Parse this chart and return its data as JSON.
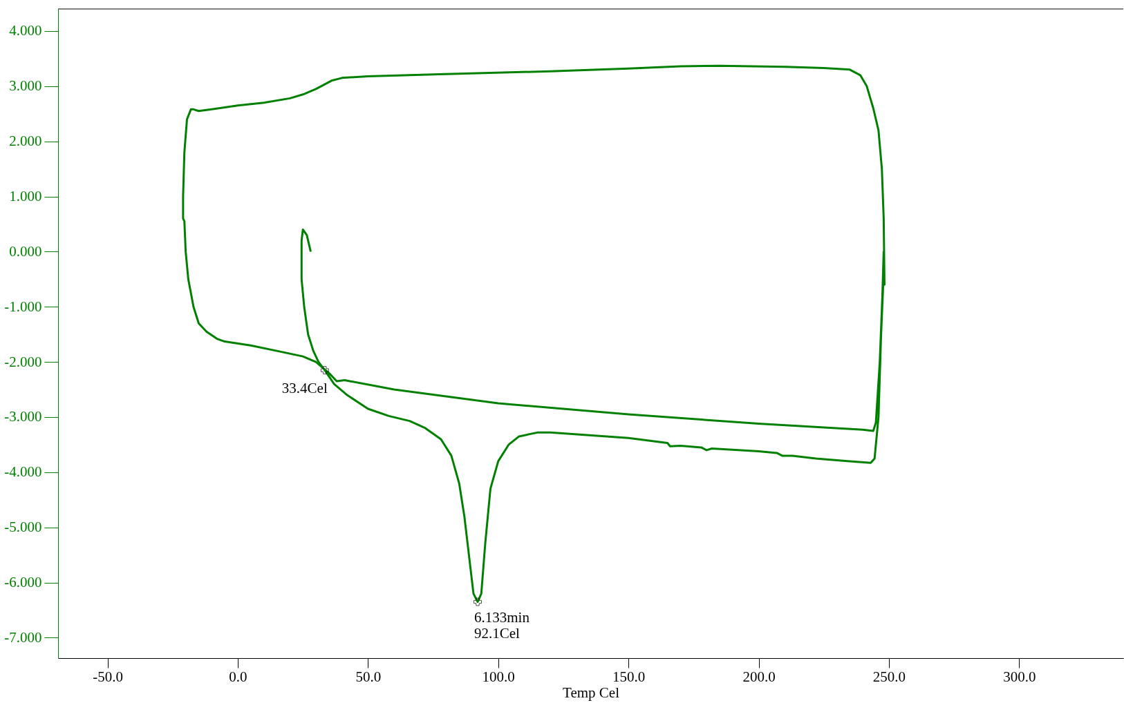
{
  "chart_data": {
    "type": "line",
    "xlabel": "Temp Cel",
    "xlim": [
      -69,
      340
    ],
    "ylim": [
      -7.37,
      4.4
    ],
    "xticks": [
      {
        "value": -50,
        "label": "-50.0"
      },
      {
        "value": 0,
        "label": "0.0"
      },
      {
        "value": 50,
        "label": "50.0"
      },
      {
        "value": 100,
        "label": "100.0"
      },
      {
        "value": 150,
        "label": "150.0"
      },
      {
        "value": 200,
        "label": "200.0"
      },
      {
        "value": 250,
        "label": "250.0"
      },
      {
        "value": 300,
        "label": "300.0"
      }
    ],
    "yticks": [
      {
        "value": 4,
        "label": "4.000"
      },
      {
        "value": 3,
        "label": "3.000"
      },
      {
        "value": 2,
        "label": "2.000"
      },
      {
        "value": 1,
        "label": "1.000"
      },
      {
        "value": 0,
        "label": "0.000"
      },
      {
        "value": -1,
        "label": "-1.000"
      },
      {
        "value": -2,
        "label": "-2.000"
      },
      {
        "value": -3,
        "label": "-3.000"
      },
      {
        "value": -4,
        "label": "-4.000"
      },
      {
        "value": -5,
        "label": "-5.000"
      },
      {
        "value": -6,
        "label": "-6.000"
      },
      {
        "value": -7,
        "label": "-7.000"
      }
    ],
    "grid": false,
    "marker": "none",
    "line_style": "solid",
    "series": [
      {
        "color": "#008000",
        "x": [
          28,
          26.5,
          25,
          24.5,
          24.5,
          25.5,
          27,
          29,
          31,
          33.4,
          37,
          42,
          50,
          58,
          66,
          72,
          78,
          82,
          85,
          87,
          89,
          90.5,
          92.1,
          93.5,
          95,
          97,
          100,
          104,
          108,
          115,
          120,
          135,
          150,
          165,
          166,
          170,
          178,
          180,
          182,
          200,
          207,
          209,
          213,
          222,
          235,
          243,
          244.5,
          246,
          247,
          247.8,
          248,
          248.3,
          248,
          247.3,
          246,
          244,
          241.5,
          239,
          235,
          225,
          210,
          185,
          170,
          150,
          120,
          80,
          50,
          40,
          36,
          30,
          25,
          20,
          10,
          0,
          -10,
          -15,
          -17,
          -18,
          -19.5,
          -20.5,
          -21,
          -21,
          -20.5,
          -20,
          -19,
          -17,
          -15,
          -12,
          -8,
          -5,
          5,
          15,
          25,
          30,
          35,
          38,
          41,
          60,
          100,
          150,
          200,
          240,
          244,
          245,
          246.5,
          247.5,
          248
        ],
        "values": [
          0.0,
          0.3,
          0.4,
          0.2,
          -0.5,
          -1.0,
          -1.5,
          -1.8,
          -2.0,
          -2.15,
          -2.4,
          -2.6,
          -2.85,
          -2.98,
          -3.07,
          -3.2,
          -3.4,
          -3.7,
          -4.2,
          -4.8,
          -5.6,
          -6.2,
          -6.35,
          -6.2,
          -5.3,
          -4.3,
          -3.8,
          -3.5,
          -3.35,
          -3.28,
          -3.28,
          -3.33,
          -3.38,
          -3.47,
          -3.53,
          -3.52,
          -3.55,
          -3.6,
          -3.57,
          -3.62,
          -3.65,
          -3.7,
          -3.7,
          -3.75,
          -3.8,
          -3.83,
          -3.75,
          -3.0,
          -1.5,
          -0.6,
          0.0,
          -0.6,
          0.6,
          1.5,
          2.2,
          2.6,
          3.0,
          3.2,
          3.3,
          3.33,
          3.35,
          3.37,
          3.36,
          3.32,
          3.27,
          3.22,
          3.18,
          3.15,
          3.1,
          2.95,
          2.85,
          2.78,
          2.7,
          2.65,
          2.58,
          2.55,
          2.58,
          2.58,
          2.4,
          1.8,
          1.0,
          0.6,
          0.55,
          0.0,
          -0.5,
          -1.0,
          -1.3,
          -1.45,
          -1.58,
          -1.63,
          -1.7,
          -1.8,
          -1.9,
          -2.0,
          -2.2,
          -2.35,
          -2.33,
          -2.5,
          -2.75,
          -2.95,
          -3.12,
          -3.23,
          -3.25,
          -3.1,
          -2.0,
          -0.8,
          0.0
        ]
      }
    ],
    "annotations": [
      {
        "text": "33.4Cel",
        "x": 33.4,
        "y": -2.15
      },
      {
        "text": "6.133min\n92.1Cel",
        "x": 92.1,
        "y": -6.35
      }
    ]
  }
}
